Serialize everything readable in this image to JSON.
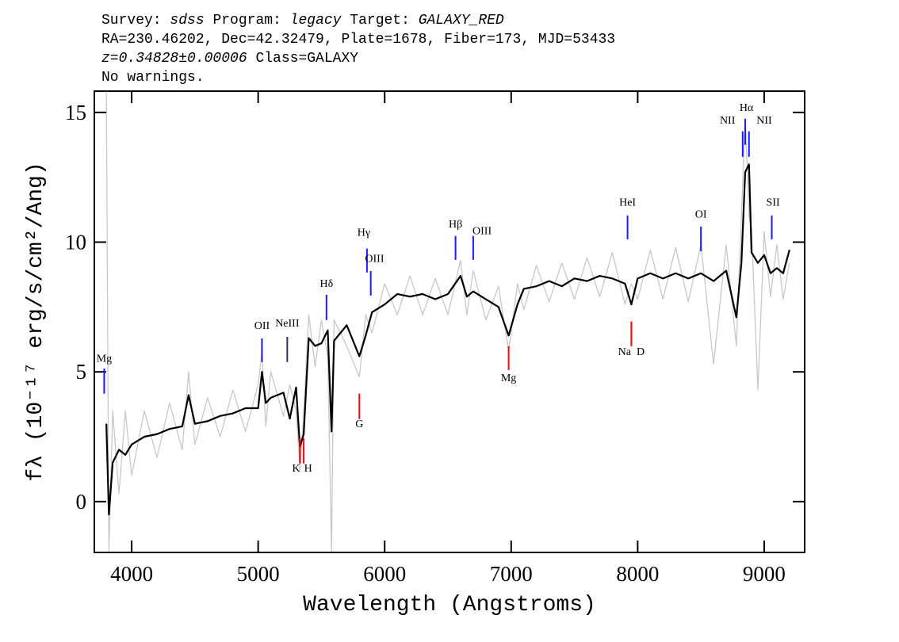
{
  "chart_data": {
    "type": "line",
    "header": [
      [
        {
          "text": "Survey: "
        },
        {
          "text": "sdss",
          "italic": true
        },
        {
          "text": " Program: "
        },
        {
          "text": "legacy",
          "italic": true
        },
        {
          "text": " Target: "
        },
        {
          "text": "GALAXY_RED",
          "italic": true
        }
      ],
      [
        {
          "text": "RA=230.46202, Dec=42.32479, Plate=1678, Fiber=173, MJD=53433"
        }
      ],
      [
        {
          "text": "z=0.34828±0.00006",
          "italic": true
        },
        {
          "text": " Class=GALAXY"
        }
      ],
      [
        {
          "text": "No warnings."
        }
      ]
    ],
    "xlabel": "Wavelength (Angstroms)",
    "ylabel": "fλ (10⁻¹⁷ erg/s/cm²/Ang)",
    "xlim": [
      3705,
      9320
    ],
    "ylim": [
      -1.96,
      15.82
    ],
    "xticks": [
      4000,
      5000,
      6000,
      7000,
      8000,
      9000
    ],
    "yticks": [
      0,
      5,
      10,
      15
    ],
    "x": [
      3800,
      3820,
      3850,
      3900,
      3950,
      4000,
      4100,
      4200,
      4300,
      4400,
      4450,
      4500,
      4600,
      4700,
      4800,
      4900,
      5000,
      5030,
      5060,
      5100,
      5200,
      5250,
      5300,
      5330,
      5360,
      5400,
      5450,
      5500,
      5550,
      5580,
      5600,
      5700,
      5800,
      5850,
      5900,
      6000,
      6100,
      6200,
      6300,
      6400,
      6500,
      6600,
      6650,
      6700,
      6800,
      6900,
      6980,
      7050,
      7100,
      7200,
      7300,
      7400,
      7500,
      7600,
      7700,
      7800,
      7900,
      7950,
      8000,
      8100,
      8200,
      8300,
      8400,
      8500,
      8600,
      8700,
      8780,
      8820,
      8850,
      8880,
      8900,
      8950,
      9000,
      9050,
      9100,
      9150,
      9200
    ],
    "series": [
      {
        "color": "#c8c8c8",
        "values": [
          15.8,
          -1.9,
          3.5,
          0.3,
          3.5,
          1.0,
          3.5,
          1.7,
          3.8,
          2.0,
          5.0,
          2.2,
          4.0,
          2.5,
          4.3,
          2.7,
          4.5,
          5.8,
          2.9,
          5.0,
          3.3,
          4.5,
          3.5,
          1.2,
          3.4,
          7.2,
          5.2,
          7.0,
          5.6,
          -1.9,
          7.0,
          6.0,
          4.8,
          7.2,
          6.5,
          8.4,
          7.2,
          8.7,
          7.2,
          8.6,
          7.2,
          9.3,
          7.2,
          8.9,
          7.0,
          8.3,
          5.8,
          8.4,
          7.4,
          9.1,
          7.7,
          9.2,
          7.8,
          9.4,
          7.9,
          9.6,
          7.6,
          8.4,
          7.8,
          9.7,
          7.8,
          9.8,
          7.7,
          9.9,
          5.3,
          9.9,
          6.0,
          11.0,
          14.8,
          11.0,
          10.5,
          4.3,
          10.4,
          7.9,
          9.9,
          7.8,
          9.2
        ]
      },
      {
        "color": "#000000",
        "values": [
          3.0,
          -0.5,
          1.5,
          2.0,
          1.8,
          2.2,
          2.5,
          2.6,
          2.8,
          2.9,
          4.1,
          3.0,
          3.1,
          3.3,
          3.4,
          3.6,
          3.6,
          5.0,
          3.8,
          4.0,
          4.2,
          3.2,
          4.4,
          2.1,
          2.6,
          6.3,
          6.0,
          6.1,
          6.6,
          2.7,
          6.2,
          6.8,
          5.6,
          6.4,
          7.3,
          7.6,
          8.0,
          7.9,
          8.0,
          7.8,
          8.0,
          8.7,
          7.9,
          8.1,
          7.8,
          7.5,
          6.4,
          7.6,
          8.2,
          8.3,
          8.5,
          8.3,
          8.6,
          8.5,
          8.7,
          8.6,
          8.4,
          7.6,
          8.6,
          8.8,
          8.6,
          8.8,
          8.6,
          8.8,
          8.5,
          8.9,
          7.1,
          9.2,
          12.7,
          13.0,
          9.6,
          9.2,
          9.5,
          8.8,
          9.0,
          8.8,
          9.7
        ]
      }
    ],
    "annotations": [
      {
        "label": "Mg",
        "label_x": 3783,
        "label_y": 5.38,
        "x": 3783,
        "y1": 5.13,
        "y2": 4.16,
        "color": "#1a1aff"
      },
      {
        "label": "OII",
        "label_x": 5030,
        "label_y": 6.66,
        "x": 5030,
        "y1": 6.29,
        "y2": 5.38,
        "color": "#1a1aff"
      },
      {
        "label": "NeIII",
        "label_x": 5230,
        "label_y": 6.75,
        "x": 5230,
        "y1": 6.35,
        "y2": 5.38,
        "color": "#303060"
      },
      {
        "label": "Hδ",
        "label_x": 5540,
        "label_y": 8.28,
        "x": 5540,
        "y1": 7.97,
        "y2": 7.0,
        "color": "#1a1aff"
      },
      {
        "label": "Hγ",
        "label_x": 5835,
        "label_y": 10.24,
        "x": 5860,
        "y1": 9.75,
        "y2": 8.83,
        "color": "#1a1aff"
      },
      {
        "label": "OIII",
        "label_x": 5920,
        "label_y": 9.23,
        "x": 5890,
        "y1": 8.89,
        "y2": 7.94,
        "color": "#1a1aff"
      },
      {
        "label": "Hβ",
        "label_x": 6560,
        "label_y": 10.57,
        "x": 6560,
        "y1": 10.24,
        "y2": 9.32,
        "color": "#1a1aff"
      },
      {
        "label": "OIII",
        "label_x": 6770,
        "label_y": 10.3,
        "x": 6700,
        "y1": 10.24,
        "y2": 9.32,
        "color": "#1a1aff"
      },
      {
        "label": "HeI",
        "label_x": 7920,
        "label_y": 11.4,
        "x": 7920,
        "y1": 11.03,
        "y2": 10.11,
        "color": "#1a1aff"
      },
      {
        "label": "OI",
        "label_x": 8500,
        "label_y": 10.94,
        "x": 8500,
        "y1": 10.6,
        "y2": 9.65,
        "color": "#1a1aff"
      },
      {
        "label": "NII",
        "label_x": 8710,
        "label_y": 14.57,
        "x": 8830,
        "y1": 14.27,
        "y2": 13.29,
        "color": "#1a1aff"
      },
      {
        "label": "Hα",
        "label_x": 8860,
        "label_y": 15.06,
        "x": 8850,
        "y1": 14.75,
        "y2": 13.75,
        "color": "#1a1aff"
      },
      {
        "label": "NII",
        "label_x": 9000,
        "label_y": 14.57,
        "x": 8880,
        "y1": 14.27,
        "y2": 13.29,
        "color": "#1a1aff"
      },
      {
        "label": "SII",
        "label_x": 9070,
        "label_y": 11.4,
        "x": 9060,
        "y1": 11.03,
        "y2": 10.11,
        "color": "#1a1aff"
      },
      {
        "label": "K",
        "label_x": 5300,
        "label_y": 1.16,
        "x": 5330,
        "y1": 2.44,
        "y2": 1.47,
        "color": "#ff0000"
      },
      {
        "label": "H",
        "label_x": 5395,
        "label_y": 1.16,
        "x": 5360,
        "y1": 2.44,
        "y2": 1.47,
        "color": "#ff0000"
      },
      {
        "label": "G",
        "label_x": 5800,
        "label_y": 2.87,
        "x": 5800,
        "y1": 4.16,
        "y2": 3.18,
        "color": "#ff0000"
      },
      {
        "label": "Mg",
        "label_x": 6980,
        "label_y": 4.64,
        "x": 6980,
        "y1": 5.99,
        "y2": 5.07,
        "color": "#ff0000"
      },
      {
        "label": "Na  D",
        "label_x": 7950,
        "label_y": 5.65,
        "x": 7950,
        "y1": 6.94,
        "y2": 5.99,
        "color": "#ff0000"
      }
    ]
  }
}
